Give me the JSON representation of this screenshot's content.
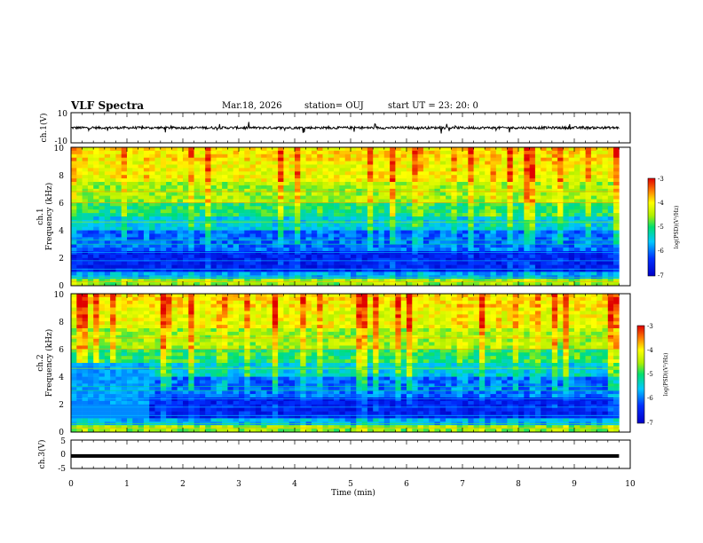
{
  "header": {
    "title": "VLF Spectra",
    "date": "Mar.18, 2026",
    "station": "station= OUJ",
    "start": "start  UT  =   23: 20: 0"
  },
  "chart_data": [
    {
      "type": "line",
      "panel": "ch1-waveform",
      "ylabel": "ch.1(V)",
      "yticks": [
        "10",
        "-10"
      ],
      "ylim": [
        -10,
        10
      ],
      "xlim": [
        0,
        10
      ],
      "baseline": 0,
      "color": "#000000"
    },
    {
      "type": "heatmap",
      "panel": "ch1-spectrogram",
      "ylabel_top": "ch.1",
      "ylabel": "Frequency (kHz)",
      "yticks": [
        "0",
        "2",
        "4",
        "6",
        "8",
        "10"
      ],
      "ylim": [
        0,
        10
      ],
      "xlim": [
        0,
        9.8
      ],
      "colorbar": {
        "label": "log(PSD)(V²/Hz)",
        "ticks": [
          "-3",
          "-4",
          "-5",
          "-6",
          "-7"
        ],
        "range": [
          -7,
          -3
        ]
      }
    },
    {
      "type": "heatmap",
      "panel": "ch2-spectrogram",
      "ylabel_top": "ch.2",
      "ylabel": "Frequency (kHz)",
      "yticks": [
        "0",
        "2",
        "4",
        "6",
        "8",
        "10"
      ],
      "ylim": [
        0,
        10
      ],
      "xlim": [
        0,
        9.8
      ],
      "colorbar": {
        "label": "log(PSD)(V²/Hz)",
        "ticks": [
          "-3",
          "-4",
          "-5",
          "-6",
          "-7"
        ],
        "range": [
          -7,
          -3
        ]
      }
    },
    {
      "type": "line",
      "panel": "ch3-waveform",
      "ylabel": "ch.3(V)",
      "yticks": [
        "5",
        "0",
        "-5"
      ],
      "ylim": [
        -5,
        5
      ],
      "xlim": [
        0,
        10
      ],
      "baseline": -0.6,
      "color": "#000000"
    }
  ],
  "xaxis": {
    "label": "Time (min)",
    "ticks": [
      "0",
      "1",
      "2",
      "3",
      "4",
      "5",
      "6",
      "7",
      "8",
      "9",
      "10"
    ],
    "range": [
      0,
      10
    ]
  }
}
